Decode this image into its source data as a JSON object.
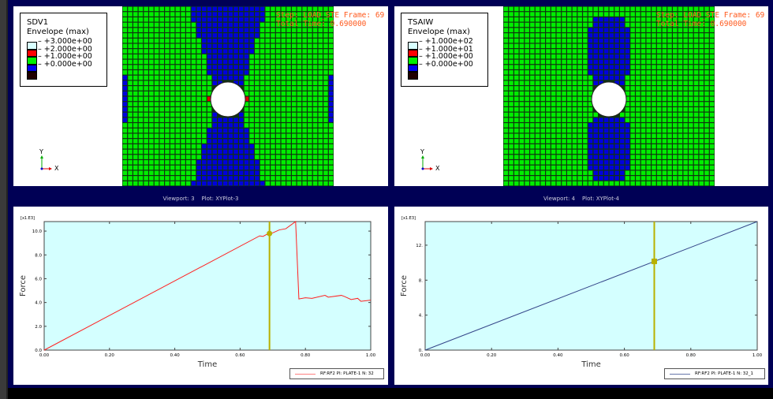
{
  "viewports": [
    {
      "id": 1,
      "variable": "SDV1",
      "envelope": "Envelope (max)",
      "legend": [
        {
          "color": "#d8ffff",
          "value": "+3.000e+00"
        },
        {
          "color": "#ff0000",
          "value": "+2.000e+00"
        },
        {
          "color": "#00ee00",
          "value": "+1.000e+00"
        },
        {
          "color": "#0000ee",
          "value": "+0.000e+00"
        },
        {
          "color": "#200000",
          "value": ""
        }
      ],
      "step_line": "Step: LOAD_STE Frame: 69",
      "time_line": "Total Time: 0.690000",
      "triad": {
        "y": "Y",
        "x": "X"
      }
    },
    {
      "id": 2,
      "variable": "TSAIW",
      "envelope": "Envelope (max)",
      "legend": [
        {
          "color": "#d8ffff",
          "value": "+1.000e+02"
        },
        {
          "color": "#ff0000",
          "value": "+1.000e+01"
        },
        {
          "color": "#00ee00",
          "value": "+1.000e+00"
        },
        {
          "color": "#0000ee",
          "value": "+0.000e+00"
        },
        {
          "color": "#200000",
          "value": ""
        }
      ],
      "step_line": "Step: LOAD_STE Frame: 69",
      "time_line": "Total Time: 0.690000",
      "triad": {
        "y": "Y",
        "x": "X"
      }
    }
  ],
  "plot_viewports": [
    {
      "title_viewport": "Viewport: 3",
      "title_plot": "Plot: XYPlot-3"
    },
    {
      "title_viewport": "Viewport: 4",
      "title_plot": "Plot: XYPlot-4"
    }
  ],
  "chart_data": [
    {
      "type": "line",
      "xlabel": "Time",
      "ylabel": "Force",
      "scale_label": "[x1.E3]",
      "xlim": [
        0,
        1
      ],
      "ylim": [
        0,
        10.8
      ],
      "xticks": [
        "0.00",
        "0.20",
        "0.40",
        "0.60",
        "0.80",
        "1.00"
      ],
      "xtick_values": [
        0,
        0.2,
        0.4,
        0.6,
        0.8,
        1.0
      ],
      "yticks": [
        "0.0",
        "2.0",
        "4.0",
        "6.0",
        "8.0",
        "10.0"
      ],
      "ytick_values": [
        0,
        2,
        4,
        6,
        8,
        10
      ],
      "series": [
        {
          "name": "RF:RF2 PI: PLATE-1 N: 32",
          "color": "#ff2020",
          "x": [
            0,
            0.66,
            0.67,
            0.68,
            0.7,
            0.72,
            0.74,
            0.77,
            0.78,
            0.8,
            0.82,
            0.86,
            0.87,
            0.91,
            0.92,
            0.94,
            0.96,
            0.97,
            1.0
          ],
          "y": [
            0,
            9.6,
            9.55,
            9.7,
            9.85,
            10.1,
            10.2,
            10.8,
            4.3,
            4.4,
            4.35,
            4.6,
            4.45,
            4.6,
            4.5,
            4.25,
            4.35,
            4.1,
            4.2
          ]
        }
      ],
      "cursor": {
        "x": 0.69,
        "y": 9.8,
        "color": "#b8b000",
        "marker": "circle"
      }
    },
    {
      "type": "line",
      "xlabel": "Time",
      "ylabel": "Force",
      "scale_label": "[x1.E3]",
      "xlim": [
        0,
        1
      ],
      "ylim": [
        0,
        14.7
      ],
      "xticks": [
        "0.00",
        "0.20",
        "0.40",
        "0.60",
        "0.80",
        "1.00"
      ],
      "xtick_values": [
        0,
        0.2,
        0.4,
        0.6,
        0.8,
        1.0
      ],
      "yticks": [
        "0.",
        "4.",
        "8.",
        "12."
      ],
      "ytick_values": [
        0,
        4,
        8,
        12
      ],
      "series": [
        {
          "name": "RF:RF2 PI: PLATE-1 N: 32_1",
          "color": "#334488",
          "x": [
            0,
            1
          ],
          "y": [
            0,
            14.7
          ]
        }
      ],
      "cursor": {
        "x": 0.69,
        "y": 10.15,
        "color": "#b8b000",
        "marker": "square"
      }
    }
  ]
}
